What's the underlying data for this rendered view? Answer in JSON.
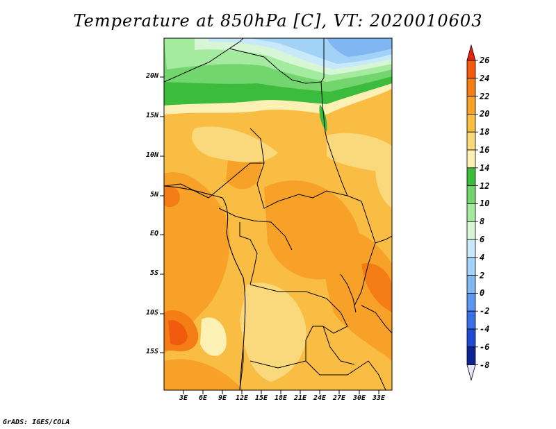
{
  "title": "Temperature at 850hPa [C], VT: 2020010603",
  "credit": "GrADS: IGES/COLA",
  "map": {
    "lat_labels": [
      "20N",
      "15N",
      "10N",
      "5N",
      "EQ",
      "5S",
      "10S",
      "15S"
    ],
    "lon_labels": [
      "3E",
      "6E",
      "9E",
      "12E",
      "15E",
      "18E",
      "21E",
      "24E",
      "27E",
      "30E",
      "33E"
    ]
  },
  "colorbar": {
    "levels": [
      "26",
      "24",
      "22",
      "20",
      "18",
      "16",
      "14",
      "12",
      "10",
      "8",
      "6",
      "4",
      "2",
      "0",
      "-2",
      "-4",
      "-6",
      "-8"
    ],
    "colors": [
      "#e8230b",
      "#f25a0e",
      "#f57d15",
      "#f8a128",
      "#f9bd44",
      "#fad87c",
      "#fdf0b5",
      "#3cbc3c",
      "#73d56e",
      "#a5eb9f",
      "#d6f6d6",
      "#c7e9f9",
      "#a3d2f7",
      "#80b6f2",
      "#5b96ee",
      "#3b70e5",
      "#1e4bd2",
      "#0c2494",
      "#04106e"
    ]
  }
}
